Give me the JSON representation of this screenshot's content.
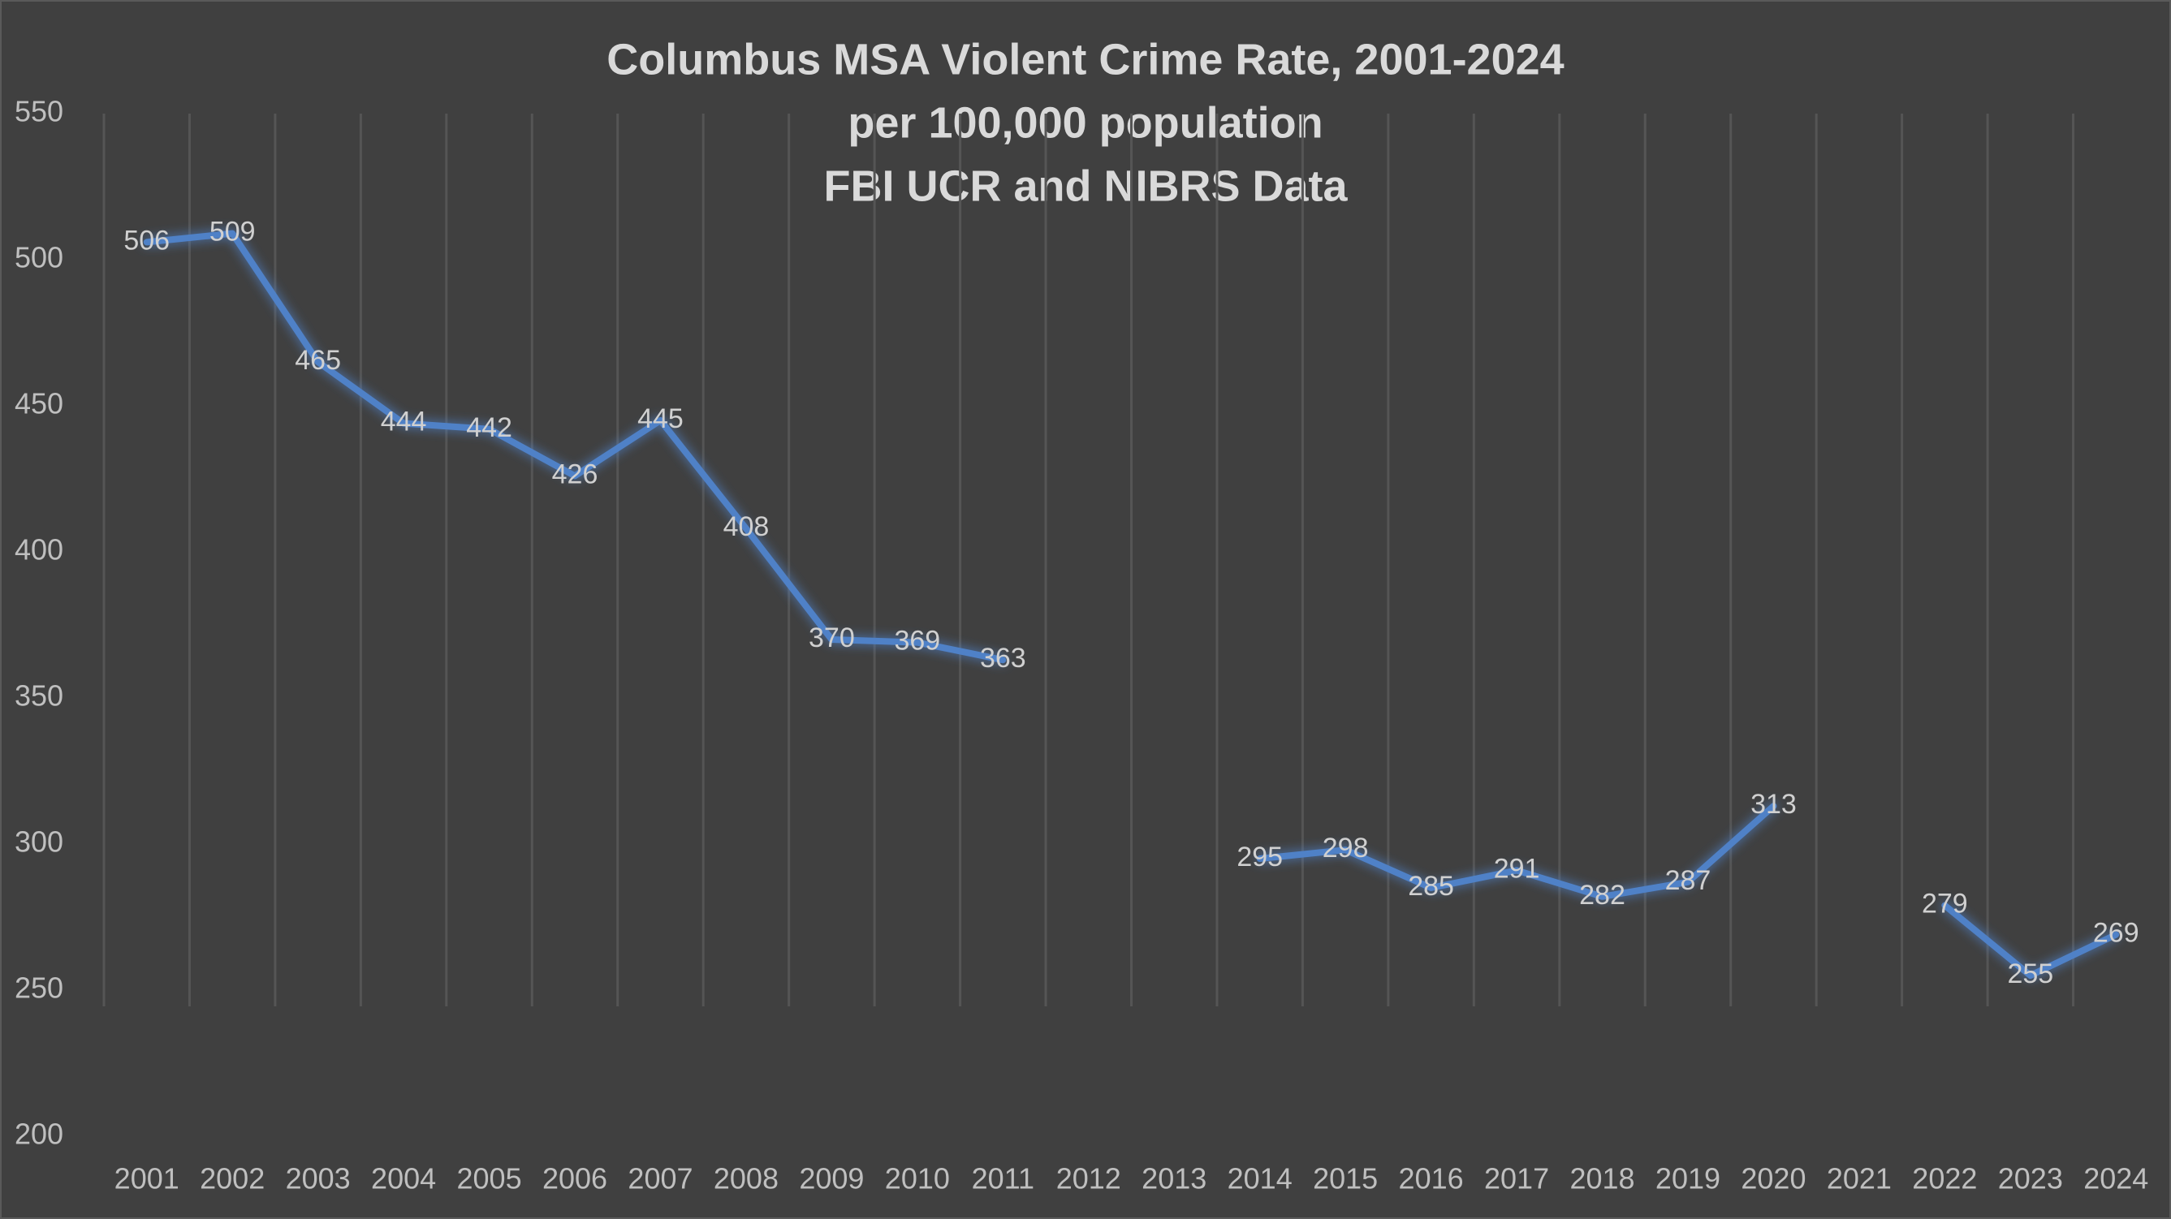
{
  "chart_data": {
    "type": "line",
    "title": [
      "Columbus MSA Violent Crime Rate, 2001-2024",
      "per 100,000 population",
      "FBI UCR and NIBRS Data"
    ],
    "categories": [
      "2001",
      "2002",
      "2003",
      "2004",
      "2005",
      "2006",
      "2007",
      "2008",
      "2009",
      "2010",
      "2011",
      "2012",
      "2013",
      "2014",
      "2015",
      "2016",
      "2017",
      "2018",
      "2019",
      "2020",
      "2021",
      "2022",
      "2023",
      "2024"
    ],
    "series": [
      {
        "color": "#4f81c7",
        "values": [
          506,
          509,
          465,
          444,
          442,
          426,
          445,
          408,
          370,
          369,
          363,
          null,
          null,
          295,
          298,
          285,
          291,
          282,
          287,
          313,
          null,
          279,
          255,
          269
        ]
      }
    ],
    "ylim": [
      200,
      550
    ],
    "yticks": [
      200,
      250,
      300,
      350,
      400,
      450,
      500,
      550
    ],
    "grid": true
  }
}
